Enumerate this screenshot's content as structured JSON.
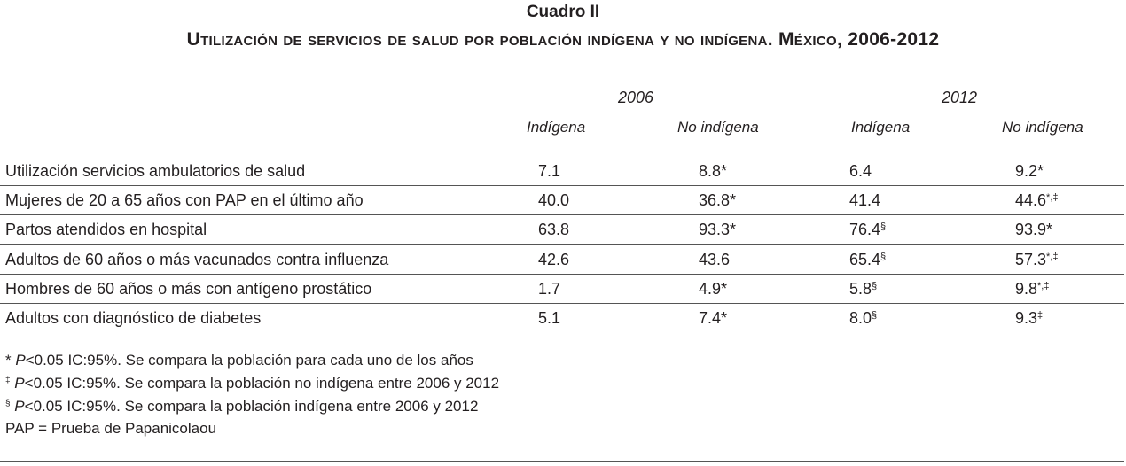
{
  "table": {
    "caption": "Cuadro II",
    "title": "Utilización de servicios de salud por población indígena y no indígena. México, 2006-2012",
    "years": [
      "2006",
      "2012"
    ],
    "columns": [
      "Indígena",
      "No indígena",
      "Indígena",
      "No indígena"
    ],
    "rows": [
      {
        "label": "Utilización servicios ambulatorios de salud",
        "cells": [
          {
            "v": "7.1",
            "m": ""
          },
          {
            "v": "8.8*",
            "m": ""
          },
          {
            "v": "6.4",
            "m": ""
          },
          {
            "v": "9.2*",
            "m": ""
          }
        ]
      },
      {
        "label": "Mujeres de 20 a 65 años con PAP en el último año",
        "cells": [
          {
            "v": "40.0",
            "m": ""
          },
          {
            "v": "36.8*",
            "m": ""
          },
          {
            "v": "41.4",
            "m": ""
          },
          {
            "v": "44.6",
            "m": "*,‡"
          }
        ]
      },
      {
        "label": "Partos atendidos en hospital",
        "cells": [
          {
            "v": "63.8",
            "m": ""
          },
          {
            "v": "93.3*",
            "m": ""
          },
          {
            "v": "76.4",
            "m": "§"
          },
          {
            "v": "93.9*",
            "m": ""
          }
        ]
      },
      {
        "label": "Adultos de 60 años o más vacunados contra influenza",
        "cells": [
          {
            "v": "42.6",
            "m": ""
          },
          {
            "v": "43.6",
            "m": ""
          },
          {
            "v": "65.4",
            "m": "§"
          },
          {
            "v": "57.3",
            "m": "*,‡"
          }
        ]
      },
      {
        "label": "Hombres de 60 años o más con antígeno prostático",
        "cells": [
          {
            "v": "1.7",
            "m": ""
          },
          {
            "v": "4.9*",
            "m": ""
          },
          {
            "v": "5.8",
            "m": "§"
          },
          {
            "v": "9.8",
            "m": "*,‡"
          }
        ]
      },
      {
        "label": "Adultos con diagnóstico de diabetes",
        "cells": [
          {
            "v": "5.1",
            "m": ""
          },
          {
            "v": "7.4*",
            "m": ""
          },
          {
            "v": "8.0",
            "m": "§"
          },
          {
            "v": "9.3",
            "m": "‡"
          }
        ]
      }
    ],
    "notes": [
      {
        "mark": "*",
        "italic": "P",
        "text": "<0.05 IC:95%. Se compara la población para cada uno de los años"
      },
      {
        "mark": "‡",
        "italic": "P",
        "text": "<0.05 IC:95%. Se compara la población no indígena entre 2006 y 2012"
      },
      {
        "mark": "§",
        "italic": "P",
        "text": "<0.05 IC:95%. Se compara la población indígena entre 2006 y 2012"
      },
      {
        "mark": "",
        "italic": "",
        "text": "PAP = Prueba de Papanicolaou"
      }
    ]
  }
}
